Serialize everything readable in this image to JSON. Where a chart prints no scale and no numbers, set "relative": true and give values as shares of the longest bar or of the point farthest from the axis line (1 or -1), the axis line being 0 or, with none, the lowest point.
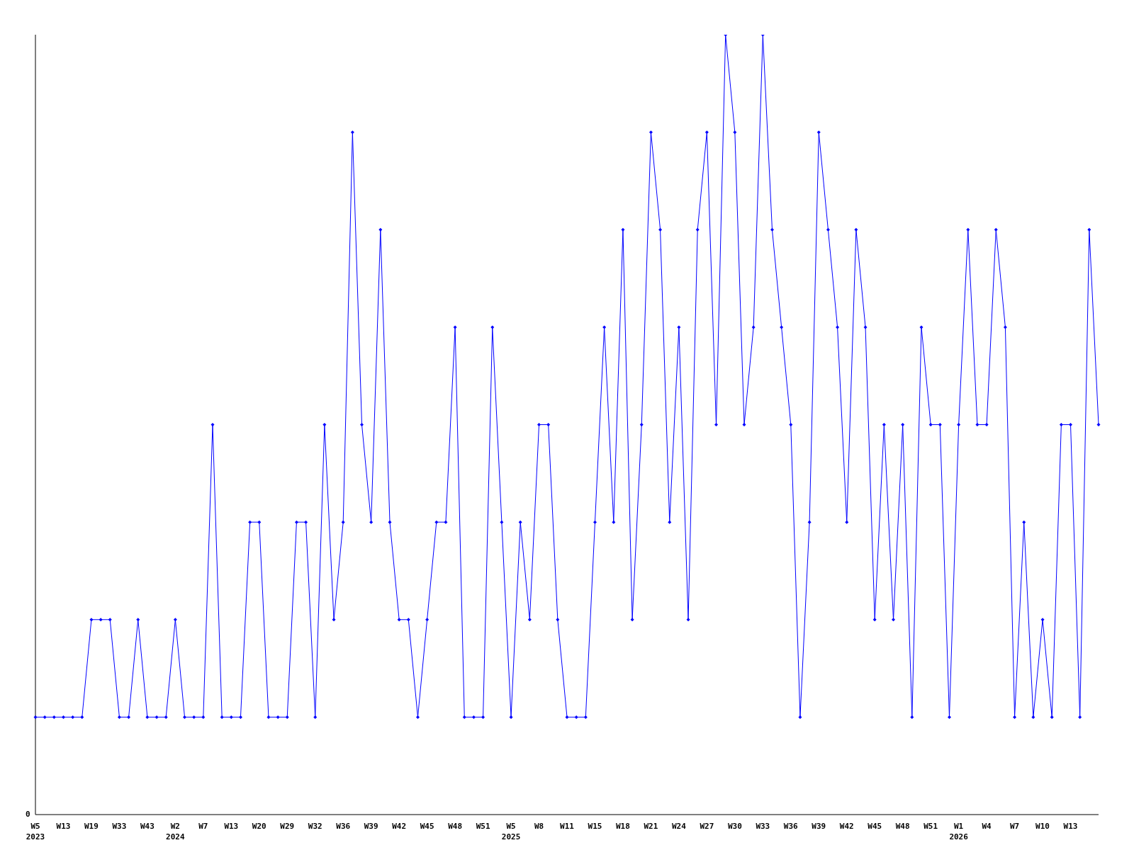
{
  "chart_data": {
    "type": "line",
    "relative": true,
    "annotations": [
      "0"
    ],
    "color": "#0000ff",
    "marker": "diamond",
    "categories": [
      "W5\n2023",
      null,
      null,
      "W13",
      null,
      null,
      "W19",
      null,
      null,
      "W33",
      null,
      null,
      "W43",
      null,
      null,
      "W2\n2024",
      null,
      null,
      "W7",
      null,
      null,
      "W13",
      null,
      null,
      "W20",
      null,
      null,
      "W29",
      null,
      null,
      "W32",
      null,
      null,
      "W36",
      null,
      null,
      "W39",
      null,
      null,
      "W42",
      null,
      null,
      "W45",
      null,
      null,
      "W48",
      null,
      null,
      "W51",
      null,
      null,
      "W5\n2025",
      null,
      null,
      "W8",
      null,
      null,
      "W11",
      null,
      null,
      "W15",
      null,
      null,
      "W18",
      null,
      null,
      "W21",
      null,
      null,
      "W24",
      null,
      null,
      "W27",
      null,
      null,
      "W30",
      null,
      null,
      "W33",
      null,
      null,
      "W36",
      null,
      null,
      "W39",
      null,
      null,
      "W42",
      null,
      null,
      "W45",
      null,
      null,
      "W48",
      null,
      null,
      "W51",
      null,
      null,
      "W1\n2026",
      null,
      null,
      "W4",
      null,
      null,
      "W7",
      null,
      null,
      "W10",
      null,
      null,
      "W13",
      null,
      null,
      null
    ],
    "values": [
      0.125,
      0.125,
      0.125,
      0.125,
      0.125,
      0.125,
      0.25,
      0.25,
      0.25,
      0.125,
      0.125,
      0.25,
      0.125,
      0.125,
      0.125,
      0.25,
      0.125,
      0.125,
      0.125,
      0.5,
      0.125,
      0.125,
      0.125,
      0.375,
      0.375,
      0.125,
      0.125,
      0.125,
      0.375,
      0.375,
      0.125,
      0.5,
      0.25,
      0.375,
      0.875,
      0.5,
      0.375,
      0.75,
      0.375,
      0.25,
      0.25,
      0.125,
      0.25,
      0.375,
      0.375,
      0.625,
      0.125,
      0.125,
      0.125,
      0.625,
      0.375,
      0.125,
      0.375,
      0.25,
      0.5,
      0.5,
      0.25,
      0.125,
      0.125,
      0.125,
      0.375,
      0.625,
      0.375,
      0.75,
      0.25,
      0.5,
      0.875,
      0.75,
      0.375,
      0.625,
      0.25,
      0.75,
      0.875,
      0.5,
      1,
      0.875,
      0.5,
      0.625,
      1,
      0.75,
      0.625,
      0.5,
      0.125,
      0.375,
      0.875,
      0.75,
      0.625,
      0.375,
      0.75,
      0.625,
      0.25,
      0.5,
      0.25,
      0.5,
      0.125,
      0.625,
      0.5,
      0.5,
      0.125,
      0.5,
      0.75,
      0.5,
      0.5,
      0.75,
      0.625,
      0.125,
      0.375,
      0.125,
      0.25,
      0.125,
      0.5,
      0.5,
      0.125,
      0.75,
      0.5
    ]
  }
}
